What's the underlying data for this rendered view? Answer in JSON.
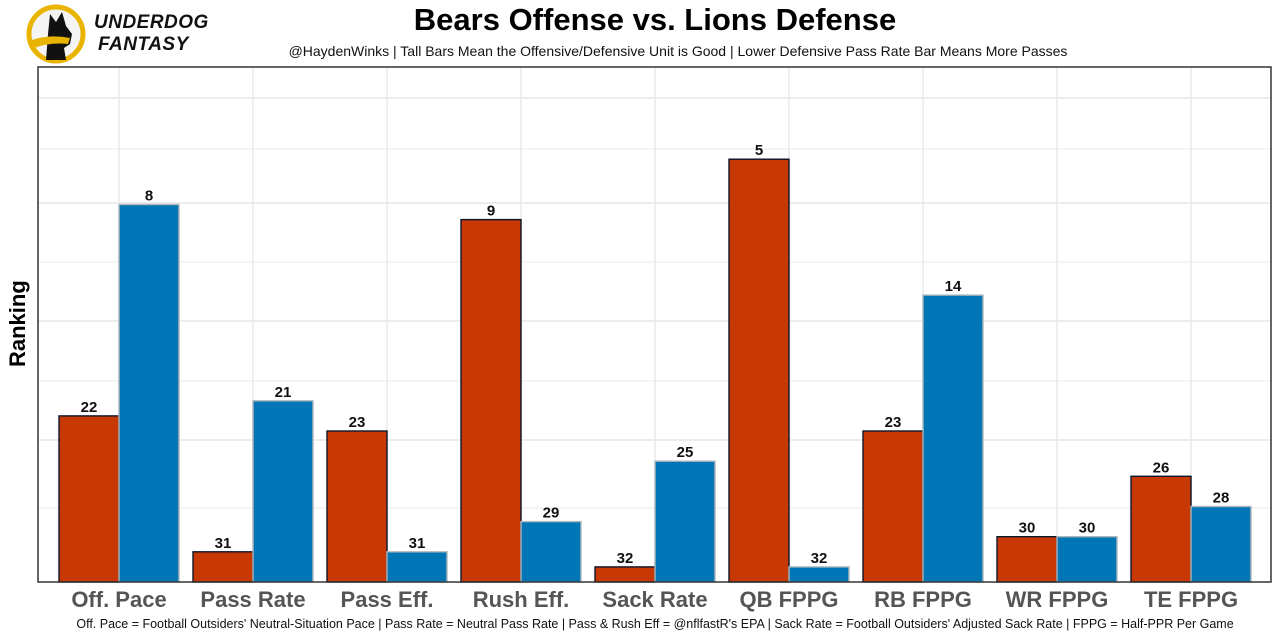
{
  "branding": {
    "logo_line1": "UNDERDOG",
    "logo_line2": "FANTASY",
    "logo_icon": "dog-silhouette-icon"
  },
  "chart_data": {
    "type": "bar",
    "title": "Bears Offense vs. Lions Defense",
    "subtitle": "@HaydenWinks | Tall Bars Mean the Offensive/Defensive Unit is Good | Lower Defensive Pass Rate Bar Means More Passes",
    "xlabel": "",
    "ylabel": "Ranking",
    "caption": "Off. Pace = Football Outsiders' Neutral-Situation Pace | Pass Rate = Neutral Pass Rate | Pass & Rush Eff = @nflfastR's EPA | Sack Rate = Football Outsiders' Adjusted Sack Rate | FPPG = Half-PPR Per Game",
    "categories": [
      "Off. Pace",
      "Pass Rate",
      "Pass Eff.",
      "Rush Eff.",
      "Sack Rate",
      "QB FPPG",
      "RB FPPG",
      "WR FPPG",
      "TE FPPG"
    ],
    "series": [
      {
        "name": "Bears Offense",
        "fill": "#C83803",
        "outline": "#0B162A",
        "values": [
          22,
          31,
          23,
          9,
          32,
          5,
          23,
          30,
          26
        ]
      },
      {
        "name": "Lions Defense",
        "fill": "#0076B6",
        "outline": "#B0B7BC",
        "values": [
          8,
          21,
          31,
          29,
          25,
          32,
          14,
          30,
          28
        ]
      }
    ],
    "bar_height_rule": "height proportional to (33 - rank); rank 1 tallest",
    "rank_range": [
      1,
      32
    ],
    "grid": true,
    "legend": "none"
  }
}
